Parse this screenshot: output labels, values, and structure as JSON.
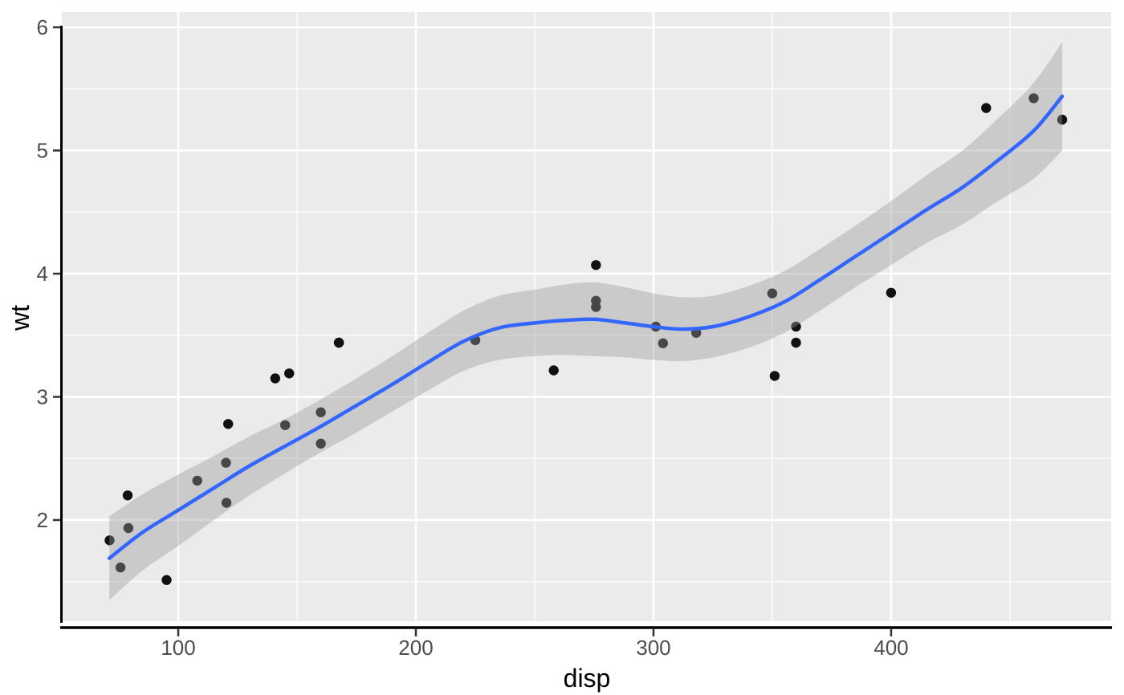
{
  "chart_data": {
    "type": "scatter",
    "title": "",
    "xlabel": "disp",
    "ylabel": "wt",
    "legend": "none",
    "grid": "on",
    "xlim": [
      51.0,
      492.6
    ],
    "ylim": [
      1.179,
      6.124
    ],
    "x_major_ticks": [
      100,
      200,
      300,
      400
    ],
    "x_minor_ticks": [
      150,
      250,
      350,
      450
    ],
    "y_major_ticks": [
      2,
      3,
      4,
      5,
      6
    ],
    "y_minor_ticks": [
      1.5,
      2.5,
      3.5,
      4.5,
      5.5
    ],
    "points": [
      [
        160.0,
        2.62
      ],
      [
        160.0,
        2.875
      ],
      [
        108.0,
        2.32
      ],
      [
        258.0,
        3.215
      ],
      [
        360.0,
        3.44
      ],
      [
        225.0,
        3.46
      ],
      [
        360.0,
        3.57
      ],
      [
        146.7,
        3.19
      ],
      [
        140.8,
        3.15
      ],
      [
        167.6,
        3.44
      ],
      [
        167.6,
        3.44
      ],
      [
        275.8,
        4.07
      ],
      [
        275.8,
        3.73
      ],
      [
        275.8,
        3.78
      ],
      [
        472.0,
        5.25
      ],
      [
        460.0,
        5.424
      ],
      [
        440.0,
        5.345
      ],
      [
        78.7,
        2.2
      ],
      [
        75.7,
        1.615
      ],
      [
        71.1,
        1.835
      ],
      [
        120.1,
        2.465
      ],
      [
        318.0,
        3.52
      ],
      [
        304.0,
        3.435
      ],
      [
        350.0,
        3.84
      ],
      [
        400.0,
        3.845
      ],
      [
        79.0,
        1.935
      ],
      [
        120.3,
        2.14
      ],
      [
        95.1,
        1.513
      ],
      [
        351.0,
        3.17
      ],
      [
        145.0,
        2.77
      ],
      [
        301.0,
        3.57
      ],
      [
        121.0,
        2.78
      ]
    ],
    "smooth": {
      "method": "loess",
      "x": [
        71,
        85,
        100,
        115,
        130,
        145,
        160,
        175,
        190,
        205,
        220,
        235,
        250,
        262,
        275,
        288,
        300,
        312,
        325,
        340,
        355,
        370,
        385,
        400,
        415,
        430,
        445,
        460,
        472
      ],
      "fit": [
        1.69,
        1.9,
        2.08,
        2.26,
        2.44,
        2.6,
        2.76,
        2.93,
        3.1,
        3.28,
        3.45,
        3.56,
        3.6,
        3.62,
        3.63,
        3.6,
        3.57,
        3.55,
        3.57,
        3.65,
        3.77,
        3.95,
        4.14,
        4.33,
        4.52,
        4.7,
        4.92,
        5.16,
        5.44
      ],
      "lower": [
        1.35,
        1.59,
        1.79,
        2.0,
        2.2,
        2.38,
        2.55,
        2.71,
        2.88,
        3.05,
        3.21,
        3.3,
        3.33,
        3.34,
        3.33,
        3.32,
        3.3,
        3.29,
        3.32,
        3.4,
        3.52,
        3.7,
        3.89,
        4.07,
        4.25,
        4.4,
        4.59,
        4.77,
        5.0
      ],
      "upper": [
        2.03,
        2.21,
        2.37,
        2.52,
        2.68,
        2.82,
        2.98,
        3.15,
        3.33,
        3.52,
        3.7,
        3.82,
        3.87,
        3.91,
        3.93,
        3.89,
        3.84,
        3.81,
        3.82,
        3.9,
        4.02,
        4.2,
        4.39,
        4.59,
        4.8,
        5.0,
        5.26,
        5.55,
        5.88
      ]
    },
    "colors": {
      "panel_bg": "#EBEBEB",
      "grid": "#FFFFFF",
      "point": "#111111",
      "smooth_line": "#3366FF",
      "ribbon": "rgba(153,153,153,0.40)",
      "axis_line": "#000000",
      "tick_mark": "#333333",
      "tick_label": "#4D4D4D",
      "axis_title": "#000000"
    }
  }
}
